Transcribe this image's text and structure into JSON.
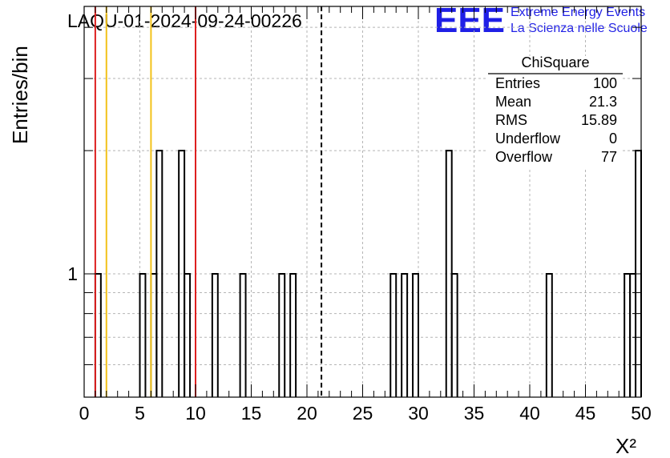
{
  "header": {
    "run_title": "LAQU-01-2024-09-24-00226",
    "logo_text": "EEE",
    "logo_line1": "Extreme Energy Events",
    "logo_line2": "La Scienza nelle Scuole"
  },
  "colors": {
    "red_lines": "#dd1f1f",
    "yellow_lines": "#f2c21a",
    "logo": "#1f1fe6"
  },
  "stats": {
    "title": "ChiSquare",
    "rows": [
      {
        "label": "Entries",
        "value": "100"
      },
      {
        "label": "Mean",
        "value": "21.3"
      },
      {
        "label": "RMS",
        "value": "15.89"
      },
      {
        "label": "Underflow",
        "value": "0"
      },
      {
        "label": "Overflow",
        "value": "77"
      }
    ]
  },
  "chart_data": {
    "type": "bar",
    "histogram": "step",
    "title": "LAQU-01-2024-09-24-00226",
    "xlabel": "X²",
    "ylabel": "Entries/bin",
    "xlim": [
      0,
      50
    ],
    "ylim": [
      0.5,
      4.5
    ],
    "y_scale": "log",
    "grid": true,
    "bin_width": 0.5,
    "x_ticks": [
      "0",
      "5",
      "10",
      "15",
      "20",
      "25",
      "30",
      "35",
      "40",
      "45",
      "50"
    ],
    "y_ticks": [
      "1"
    ],
    "bins": [
      {
        "x": 1.0,
        "count": 1
      },
      {
        "x": 5.0,
        "count": 1
      },
      {
        "x": 6.0,
        "count": 1
      },
      {
        "x": 6.5,
        "count": 2
      },
      {
        "x": 8.5,
        "count": 2
      },
      {
        "x": 9.0,
        "count": 1
      },
      {
        "x": 11.5,
        "count": 1
      },
      {
        "x": 14.0,
        "count": 1
      },
      {
        "x": 17.5,
        "count": 1
      },
      {
        "x": 18.5,
        "count": 1
      },
      {
        "x": 27.5,
        "count": 1
      },
      {
        "x": 28.5,
        "count": 1
      },
      {
        "x": 29.5,
        "count": 1
      },
      {
        "x": 32.5,
        "count": 2
      },
      {
        "x": 33.0,
        "count": 1
      },
      {
        "x": 41.5,
        "count": 1
      },
      {
        "x": 48.5,
        "count": 1
      },
      {
        "x": 49.0,
        "count": 1
      },
      {
        "x": 49.5,
        "count": 2
      }
    ],
    "vertical_lines": [
      {
        "x": 1.0,
        "style": "solid",
        "color": "#dd1f1f"
      },
      {
        "x": 2.0,
        "style": "solid",
        "color": "#f2c21a"
      },
      {
        "x": 6.0,
        "style": "solid",
        "color": "#f2c21a"
      },
      {
        "x": 10.0,
        "style": "solid",
        "color": "#dd1f1f"
      },
      {
        "x": 21.3,
        "style": "dashed",
        "color": "#000000"
      }
    ]
  }
}
